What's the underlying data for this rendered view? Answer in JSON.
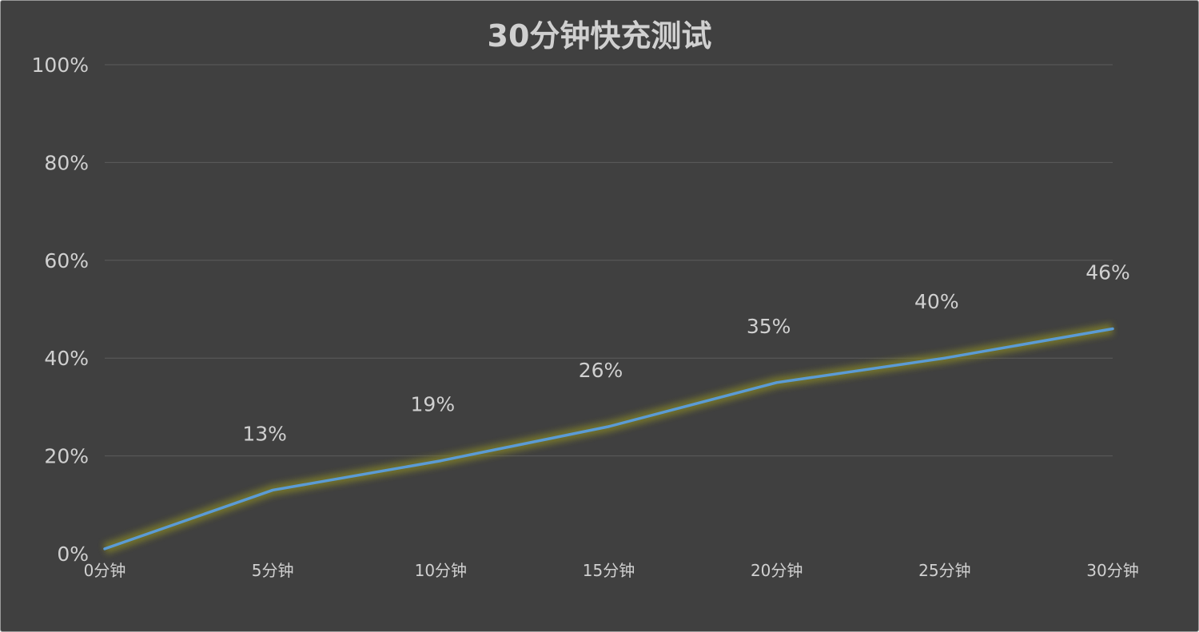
{
  "chart_data": {
    "type": "line",
    "title": "30分钟快充测试",
    "xlabel": "",
    "ylabel": "",
    "categories": [
      "0分钟",
      "5分钟",
      "10分钟",
      "15分钟",
      "20分钟",
      "25分钟",
      "30分钟"
    ],
    "series": [
      {
        "values": [
          1,
          13,
          19,
          26,
          35,
          40,
          46
        ],
        "data_labels": [
          "",
          "13%",
          "19%",
          "26%",
          "35%",
          "40%",
          "46%"
        ],
        "color": "#5b9bd5",
        "glow_color": "#7a7a2a"
      }
    ],
    "yticks": [
      "0%",
      "20%",
      "40%",
      "60%",
      "80%",
      "100%"
    ],
    "ylim": [
      0,
      100
    ],
    "grid": true,
    "legend": "none",
    "colors": {
      "background": "#404040",
      "text": "#d0d0d0",
      "grid": "#5c5c5c"
    }
  }
}
